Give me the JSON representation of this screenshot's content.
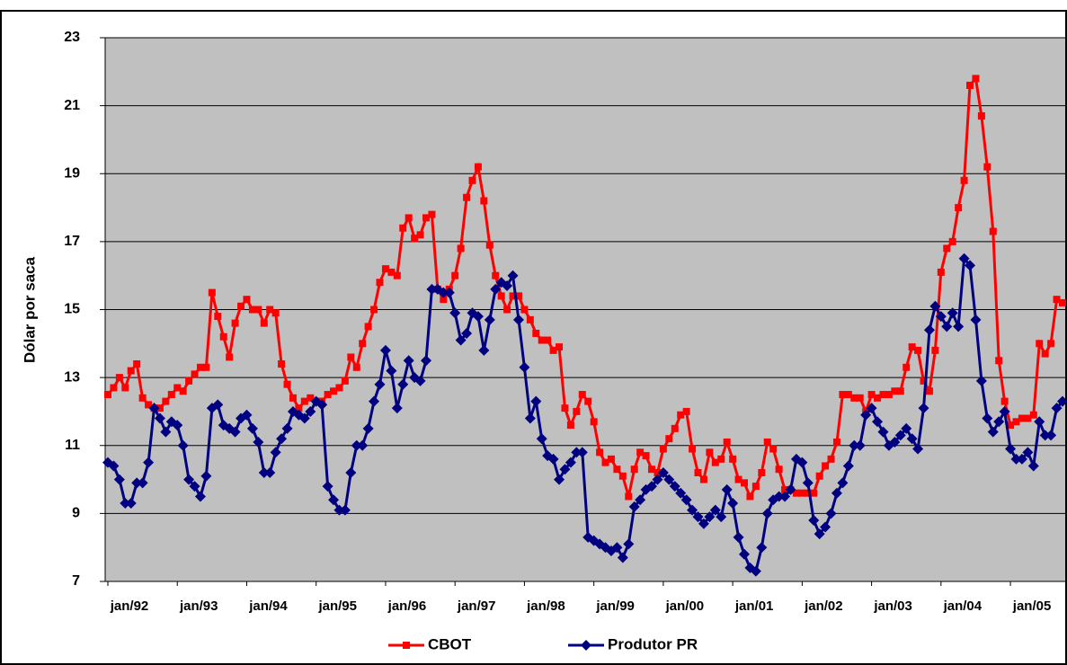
{
  "chart_data": {
    "type": "line",
    "y_label": "Dólar por saca",
    "ylim": [
      7,
      23
    ],
    "yticks": [
      7,
      9,
      11,
      13,
      15,
      17,
      19,
      21,
      23
    ],
    "grid": true,
    "legend": "bottom",
    "categories": [
      "jan/92",
      null,
      null,
      null,
      null,
      null,
      null,
      null,
      null,
      null,
      null,
      null,
      "jan/93",
      null,
      null,
      null,
      null,
      null,
      null,
      null,
      null,
      null,
      null,
      null,
      "jan/94",
      null,
      null,
      null,
      null,
      null,
      null,
      null,
      null,
      null,
      null,
      null,
      "jan/95",
      null,
      null,
      null,
      null,
      null,
      null,
      null,
      null,
      null,
      null,
      null,
      "jan/96",
      null,
      null,
      null,
      null,
      null,
      null,
      null,
      null,
      null,
      null,
      null,
      "jan/97",
      null,
      null,
      null,
      null,
      null,
      null,
      null,
      null,
      null,
      null,
      null,
      "jan/98",
      null,
      null,
      null,
      null,
      null,
      null,
      null,
      null,
      null,
      null,
      null,
      "jan/99",
      null,
      null,
      null,
      null,
      null,
      null,
      null,
      null,
      null,
      null,
      null,
      "jan/00",
      null,
      null,
      null,
      null,
      null,
      null,
      null,
      null,
      null,
      null,
      null,
      "jan/01",
      null,
      null,
      null,
      null,
      null,
      null,
      null,
      null,
      null,
      null,
      null,
      "jan/02",
      null,
      null,
      null,
      null,
      null,
      null,
      null,
      null,
      null,
      null,
      null,
      "jan/03",
      null,
      null,
      null,
      null,
      null,
      null,
      null,
      null,
      null,
      null,
      null,
      "jan/04",
      null,
      null,
      null,
      null,
      null,
      null,
      null,
      null,
      null,
      null,
      null,
      "jan/05",
      null,
      null,
      null,
      null,
      null,
      null,
      null,
      null,
      null
    ],
    "series": [
      {
        "name": "CBOT",
        "color": "#ff0000",
        "marker": "square",
        "values": [
          12.5,
          12.7,
          13.0,
          12.7,
          13.2,
          13.4,
          12.4,
          12.2,
          12.1,
          12.1,
          12.3,
          12.5,
          12.7,
          12.6,
          12.9,
          13.1,
          13.3,
          13.3,
          15.5,
          14.8,
          14.2,
          13.6,
          14.6,
          15.1,
          15.3,
          15.0,
          15.0,
          14.6,
          15.0,
          14.9,
          13.4,
          12.8,
          12.4,
          12.1,
          12.3,
          12.4,
          12.3,
          12.3,
          12.5,
          12.6,
          12.7,
          12.9,
          13.6,
          13.3,
          14.0,
          14.5,
          15.0,
          15.8,
          16.2,
          16.1,
          16.0,
          17.4,
          17.7,
          17.1,
          17.2,
          17.7,
          17.8,
          15.6,
          15.3,
          15.6,
          16.0,
          16.8,
          18.3,
          18.8,
          19.2,
          18.2,
          16.9,
          16.0,
          15.4,
          15.0,
          15.4,
          15.4,
          15.0,
          14.7,
          14.3,
          14.1,
          14.1,
          13.8,
          13.9,
          12.1,
          11.6,
          12.0,
          12.5,
          12.3,
          11.7,
          10.8,
          10.5,
          10.6,
          10.3,
          10.1,
          9.5,
          10.3,
          10.8,
          10.7,
          10.3,
          10.2,
          10.9,
          11.2,
          11.5,
          11.9,
          12.0,
          10.9,
          10.2,
          10.0,
          10.8,
          10.5,
          10.6,
          11.1,
          10.6,
          10.0,
          9.9,
          9.5,
          9.8,
          10.2,
          11.1,
          10.9,
          10.3,
          9.7,
          9.7,
          9.6,
          9.6,
          9.6,
          9.6,
          10.1,
          10.4,
          10.6,
          11.1,
          12.5,
          12.5,
          12.4,
          12.4,
          12.0,
          12.5,
          12.4,
          12.5,
          12.5,
          12.6,
          12.6,
          13.3,
          13.9,
          13.8,
          12.9,
          12.6,
          13.8,
          16.1,
          16.8,
          17.0,
          18.0,
          18.8,
          21.6,
          21.8,
          20.7,
          19.2,
          17.3,
          13.5,
          12.3,
          11.6,
          11.7,
          11.8,
          11.8,
          11.9,
          14.0,
          13.7,
          14.0,
          15.3,
          15.2
        ]
      },
      {
        "name": "Produtor PR",
        "color": "#000080",
        "marker": "diamond",
        "values": [
          10.5,
          10.4,
          10.0,
          9.3,
          9.3,
          9.9,
          9.9,
          10.5,
          12.1,
          11.8,
          11.4,
          11.7,
          11.6,
          11.0,
          10.0,
          9.8,
          9.5,
          10.1,
          12.1,
          12.2,
          11.6,
          11.5,
          11.4,
          11.8,
          11.9,
          11.5,
          11.1,
          10.2,
          10.2,
          10.8,
          11.2,
          11.5,
          12.0,
          11.9,
          11.8,
          12.0,
          12.3,
          12.2,
          9.8,
          9.4,
          9.1,
          9.1,
          10.2,
          11.0,
          11.0,
          11.5,
          12.3,
          12.8,
          13.8,
          13.2,
          12.1,
          12.8,
          13.5,
          13.0,
          12.9,
          13.5,
          15.6,
          15.6,
          15.5,
          15.5,
          14.9,
          14.1,
          14.3,
          14.9,
          14.8,
          13.8,
          14.7,
          15.6,
          15.8,
          15.7,
          16.0,
          14.7,
          13.3,
          11.8,
          12.3,
          11.2,
          10.7,
          10.6,
          10.0,
          10.3,
          10.5,
          10.8,
          10.8,
          8.3,
          8.2,
          8.1,
          8.0,
          7.9,
          8.0,
          7.7,
          8.1,
          9.2,
          9.4,
          9.7,
          9.8,
          10.0,
          10.2,
          10.0,
          9.8,
          9.6,
          9.4,
          9.1,
          8.9,
          8.7,
          8.9,
          9.1,
          8.9,
          9.7,
          9.3,
          8.3,
          7.8,
          7.4,
          7.3,
          8.0,
          9.0,
          9.4,
          9.5,
          9.5,
          9.7,
          10.6,
          10.5,
          9.9,
          8.8,
          8.4,
          8.6,
          9.0,
          9.6,
          9.9,
          10.4,
          11.0,
          11.0,
          11.9,
          12.1,
          11.7,
          11.4,
          11.0,
          11.1,
          11.3,
          11.5,
          11.2,
          10.9,
          12.1,
          14.4,
          15.1,
          14.8,
          14.5,
          14.9,
          14.5,
          16.5,
          16.3,
          14.7,
          12.9,
          11.8,
          11.4,
          11.7,
          12.0,
          10.9,
          10.6,
          10.6,
          10.8,
          10.4,
          11.7,
          11.3,
          11.3,
          12.1,
          12.3
        ]
      }
    ]
  }
}
